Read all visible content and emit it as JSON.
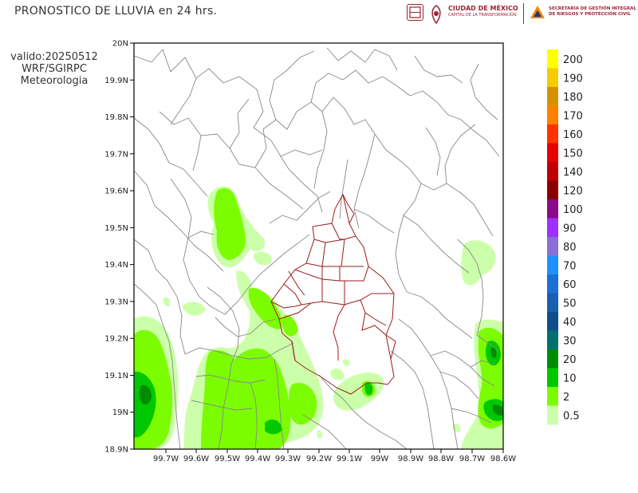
{
  "header": {
    "title": "PRONOSTICO DE LLUVIA en 24 hrs.",
    "info_lines": [
      "valido:20250512",
      "WRF/SGIRPC",
      "Meteorologia"
    ]
  },
  "logos": {
    "cdmx_name": "CIUDAD DE MÉXICO",
    "cdmx_sub": "CAPITAL DE LA TRANSFORMACIÓN",
    "sgirpc_line1": "SECRETARÍA DE GESTIÓN INTEGRAL",
    "sgirpc_line2": "DE RIESGOS Y PROTECCIÓN CIVIL"
  },
  "map": {
    "lat_labels": [
      "20N",
      "19.9N",
      "19.8N",
      "19.7N",
      "19.6N",
      "19.5N",
      "19.4N",
      "19.3N",
      "19.2N",
      "19.1N",
      "19N",
      "18.9N"
    ],
    "lon_labels": [
      "99.7W",
      "99.6W",
      "99.5W",
      "99.4W",
      "99.3W",
      "99.2W",
      "99.1W",
      "99W",
      "98.9W",
      "98.8W",
      "98.7W",
      "98.6W"
    ],
    "colors": {
      "boundary_municipal": "#888888",
      "boundary_cdmx": "#9b1b1b",
      "frame": "#000000"
    }
  },
  "legend": {
    "levels": [
      {
        "label": "200",
        "color": "#ffff00"
      },
      {
        "label": "190",
        "color": "#f5cc00"
      },
      {
        "label": "180",
        "color": "#d39200"
      },
      {
        "label": "170",
        "color": "#ff8000"
      },
      {
        "label": "160",
        "color": "#ff3300"
      },
      {
        "label": "150",
        "color": "#e60000"
      },
      {
        "label": "140",
        "color": "#c00000"
      },
      {
        "label": "120",
        "color": "#8b0000"
      },
      {
        "label": "100",
        "color": "#8b0a8b"
      },
      {
        "label": "90",
        "color": "#9b30ff"
      },
      {
        "label": "80",
        "color": "#8a6ed6"
      },
      {
        "label": "70",
        "color": "#1e90ff"
      },
      {
        "label": "60",
        "color": "#1c6fd6"
      },
      {
        "label": "50",
        "color": "#1860b0"
      },
      {
        "label": "40",
        "color": "#104e8b"
      },
      {
        "label": "30",
        "color": "#007070"
      },
      {
        "label": "20",
        "color": "#008b00"
      },
      {
        "label": "10",
        "color": "#00c800"
      },
      {
        "label": "2",
        "color": "#7cfc00"
      },
      {
        "label": "0.5",
        "color": "#ccffaa"
      }
    ]
  }
}
